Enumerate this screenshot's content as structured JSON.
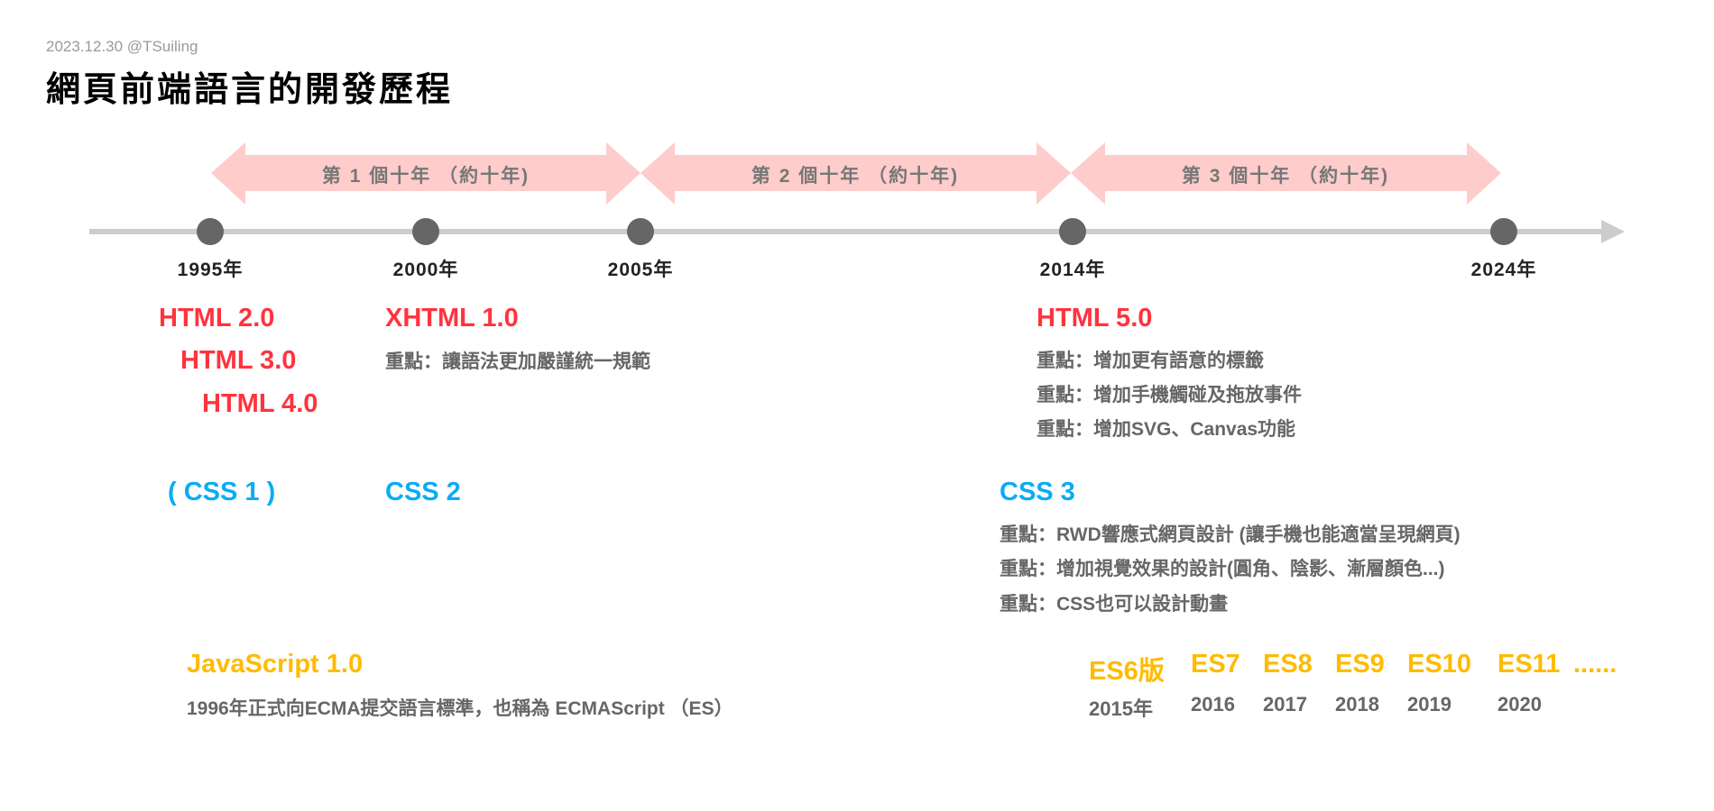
{
  "header": {
    "meta": "2023.12.30  @TSuiling",
    "title": "網頁前端語言的開發歷程"
  },
  "decades": [
    {
      "label": "第 1 個十年 （約十年)"
    },
    {
      "label": "第 2 個十年 （約十年)"
    },
    {
      "label": "第 3 個十年 （約十年)"
    }
  ],
  "timeline": {
    "years": [
      "1995年",
      "2000年",
      "2005年",
      "2014年",
      "2024年"
    ]
  },
  "html": {
    "v2": "HTML 2.0",
    "v3": "HTML 3.0",
    "v4": "HTML 4.0",
    "xhtml": "XHTML 1.0",
    "xhtml_note": "重點：讓語法更加嚴謹統一規範",
    "v5": "HTML 5.0",
    "v5_notes": [
      "重點：增加更有語意的標籤",
      "重點：增加手機觸碰及拖放事件",
      "重點：增加SVG、Canvas功能"
    ]
  },
  "css": {
    "v1": "( CSS 1 )",
    "v2": "CSS 2",
    "v3": "CSS 3",
    "v3_notes": [
      "重點：RWD響應式網頁設計 (讓手機也能適當呈現網頁)",
      "重點：增加視覺效果的設計(圓角、陰影、漸層顏色...)",
      "重點：CSS也可以設計動畫"
    ]
  },
  "js": {
    "v1": "JavaScript 1.0",
    "v1_note": "1996年正式向ECMA提交語言標準，也稱為 ECMAScript （ES）",
    "es": [
      {
        "label": "ES6版",
        "year": "2015年"
      },
      {
        "label": "ES7",
        "year": "2016"
      },
      {
        "label": "ES8",
        "year": "2017"
      },
      {
        "label": "ES9",
        "year": "2018"
      },
      {
        "label": "ES10",
        "year": "2019"
      },
      {
        "label": "ES11",
        "year": "2020"
      },
      {
        "label": "......"
      }
    ]
  },
  "colors": {
    "html": "#ff333d",
    "css": "#0aacf5",
    "js": "#ffbb00",
    "arrow": "#ffcccc",
    "timeline": "#cccccc",
    "dot": "#666666"
  }
}
